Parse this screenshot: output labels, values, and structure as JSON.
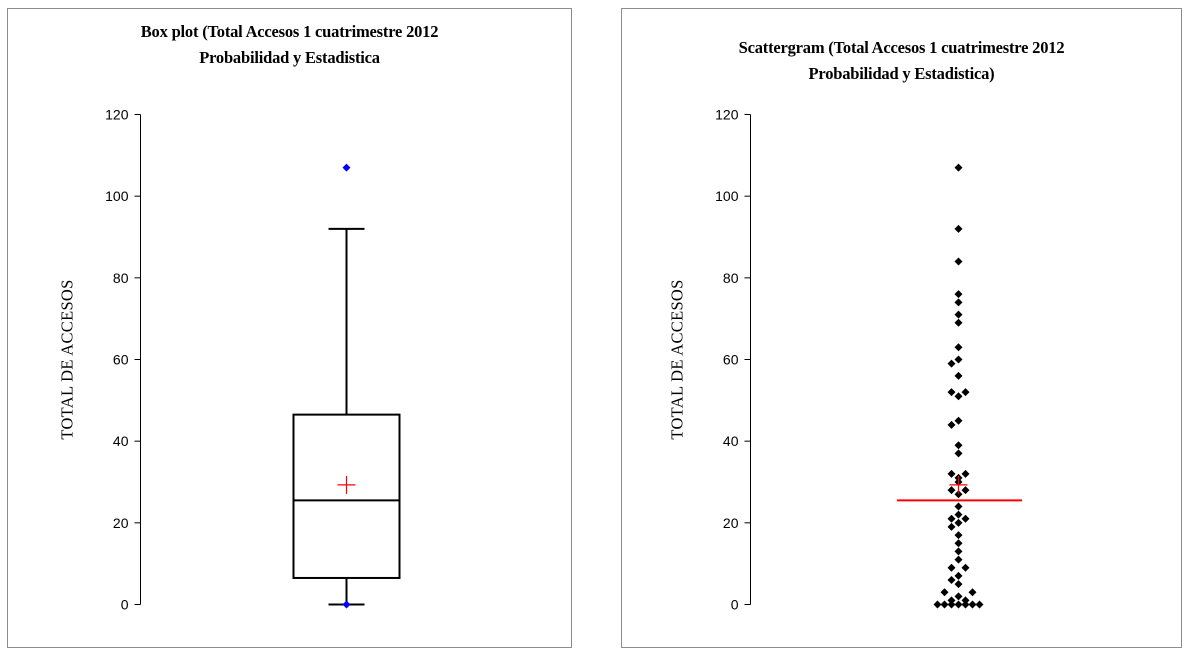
{
  "colors": {
    "outlier": "#0000ff",
    "mean_marker": "#ff0000",
    "median_line": "#ff0000",
    "points": "#000000",
    "panel_border": "#8c8c8c"
  },
  "chart_data": [
    {
      "type": "box",
      "title_lines": [
        "Box plot (Total Accesos 1 cuatrimestre  2012",
        "Probabilidad y Estadistica"
      ],
      "ylabel": "TOTAL DE ACCESOS",
      "ylim": [
        0,
        120
      ],
      "yticks": [
        0,
        20,
        40,
        60,
        80,
        100,
        120
      ],
      "grid": false,
      "box": {
        "whisker_low": 0,
        "q1": 6.5,
        "median": 25.5,
        "q3": 46.5,
        "whisker_high": 92,
        "mean": 29.3
      },
      "outliers": [
        0,
        107
      ]
    },
    {
      "type": "scatter",
      "title_lines": [
        "Scattergram (Total Accesos 1 cuatrimestre 2012",
        "Probabilidad y Estadistica)"
      ],
      "ylabel": "TOTAL DE ACCESOS",
      "ylim": [
        0,
        120
      ],
      "yticks": [
        0,
        20,
        40,
        60,
        80,
        100,
        120
      ],
      "grid": false,
      "median": 25.5,
      "mean": 29.3,
      "points": [
        {
          "y": 107,
          "o": 0
        },
        {
          "y": 92,
          "o": 0
        },
        {
          "y": 84,
          "o": 0
        },
        {
          "y": 76,
          "o": 0
        },
        {
          "y": 74,
          "o": 0
        },
        {
          "y": 71,
          "o": 0
        },
        {
          "y": 69,
          "o": 0
        },
        {
          "y": 63,
          "o": 0
        },
        {
          "y": 60,
          "o": 0
        },
        {
          "y": 59,
          "o": -1
        },
        {
          "y": 56,
          "o": 0
        },
        {
          "y": 52,
          "o": -1
        },
        {
          "y": 52,
          "o": 1
        },
        {
          "y": 51,
          "o": 0
        },
        {
          "y": 45,
          "o": 0
        },
        {
          "y": 44,
          "o": -1
        },
        {
          "y": 39,
          "o": 0
        },
        {
          "y": 37,
          "o": 0
        },
        {
          "y": 32,
          "o": -1
        },
        {
          "y": 32,
          "o": 1
        },
        {
          "y": 31,
          "o": 0
        },
        {
          "y": 30,
          "o": 0
        },
        {
          "y": 28,
          "o": -1
        },
        {
          "y": 28,
          "o": 1
        },
        {
          "y": 27,
          "o": 0
        },
        {
          "y": 24,
          "o": 0
        },
        {
          "y": 22,
          "o": 0
        },
        {
          "y": 21,
          "o": -1
        },
        {
          "y": 21,
          "o": 1
        },
        {
          "y": 20,
          "o": 0
        },
        {
          "y": 19,
          "o": -1
        },
        {
          "y": 17,
          "o": 0
        },
        {
          "y": 15,
          "o": 0
        },
        {
          "y": 13,
          "o": 0
        },
        {
          "y": 11,
          "o": 0
        },
        {
          "y": 9,
          "o": -1
        },
        {
          "y": 9,
          "o": 1
        },
        {
          "y": 7,
          "o": 0
        },
        {
          "y": 6,
          "o": -1
        },
        {
          "y": 5,
          "o": 0
        },
        {
          "y": 3,
          "o": -2
        },
        {
          "y": 3,
          "o": 2
        },
        {
          "y": 2,
          "o": 0
        },
        {
          "y": 1,
          "o": -1
        },
        {
          "y": 1,
          "o": 1
        },
        {
          "y": 0,
          "o": -3
        },
        {
          "y": 0,
          "o": -2
        },
        {
          "y": 0,
          "o": -1
        },
        {
          "y": 0,
          "o": 0
        },
        {
          "y": 0,
          "o": 1
        },
        {
          "y": 0,
          "o": 2
        },
        {
          "y": 0,
          "o": 3
        }
      ]
    }
  ]
}
